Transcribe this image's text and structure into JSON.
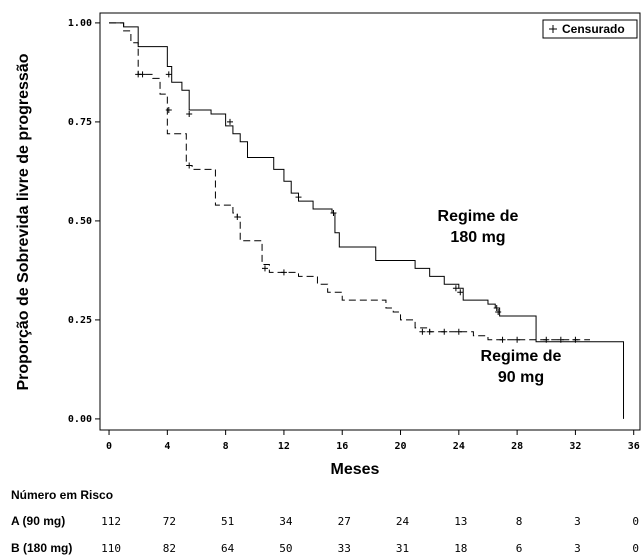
{
  "chart_data": {
    "type": "step",
    "y_label": "Proporção de Sobrevida livre de progressão",
    "x_label": "Meses",
    "xlim": [
      -0.62,
      36.5
    ],
    "ylim": [
      -0.028,
      1.025
    ],
    "xticks": [
      0,
      4,
      8,
      12,
      16,
      20,
      24,
      28,
      32,
      36
    ],
    "yticks": [
      {
        "value": 0,
        "label": "0.00"
      },
      {
        "value": 0.25,
        "label": "0.25"
      },
      {
        "value": 0.5,
        "label": "0.50"
      },
      {
        "value": 0.75,
        "label": "0.75"
      },
      {
        "value": 1,
        "label": "1.00"
      }
    ],
    "grid": false,
    "legend_label": "Censurado",
    "legend_position": "top-right",
    "annotations": [
      [
        "Regime de",
        "180 mg"
      ],
      [
        "Regime de",
        "90 mg"
      ]
    ],
    "series": [
      {
        "name": "B (180 mg)",
        "color": "#000000",
        "dashed": false,
        "x": [
          0,
          1,
          2,
          4,
          4.3,
          5,
          5.5,
          7,
          8,
          8.5,
          9,
          9.5,
          11.3,
          12,
          12.5,
          13,
          14,
          15.3,
          15.5,
          15.8,
          18.3,
          21,
          22,
          23,
          24,
          24.3,
          26,
          26.5,
          26.8,
          29.3,
          35.3,
          35.3
        ],
        "values": [
          1.0,
          0.99,
          0.94,
          0.89,
          0.85,
          0.83,
          0.78,
          0.77,
          0.74,
          0.72,
          0.7,
          0.66,
          0.63,
          0.6,
          0.57,
          0.55,
          0.53,
          0.52,
          0.47,
          0.434,
          0.4,
          0.38,
          0.36,
          0.34,
          0.33,
          0.3,
          0.29,
          0.28,
          0.26,
          0.195,
          0.195,
          0.0
        ],
        "censored_x": [
          4.1,
          5.5,
          8.3,
          13,
          15.4,
          23.8,
          24.1,
          26.6,
          26.7,
          32
        ],
        "censored_y": [
          0.87,
          0.77,
          0.75,
          0.56,
          0.52,
          0.33,
          0.32,
          0.28,
          0.27,
          0.2
        ]
      },
      {
        "name": "A (90 mg)",
        "color": "#000000",
        "dashed": true,
        "x": [
          0,
          1,
          1.5,
          2,
          3,
          3.5,
          4,
          5.3,
          5.7,
          7.3,
          8.5,
          8.8,
          9,
          10.5,
          11,
          13,
          14.3,
          15,
          16,
          19,
          19.5,
          20,
          21,
          22,
          25,
          26,
          33
        ],
        "values": [
          1.0,
          0.98,
          0.95,
          0.87,
          0.86,
          0.82,
          0.72,
          0.64,
          0.63,
          0.54,
          0.52,
          0.51,
          0.45,
          0.39,
          0.37,
          0.36,
          0.34,
          0.32,
          0.3,
          0.28,
          0.27,
          0.25,
          0.23,
          0.22,
          0.21,
          0.2,
          0.2
        ],
        "censored_x": [
          2,
          2.3,
          4.1,
          5.5,
          8.8,
          10.7,
          12,
          21.5,
          22,
          23,
          24,
          27,
          28,
          30,
          31
        ],
        "censored_y": [
          0.87,
          0.87,
          0.78,
          0.64,
          0.51,
          0.38,
          0.37,
          0.22,
          0.22,
          0.22,
          0.22,
          0.2,
          0.2,
          0.2,
          0.2
        ]
      }
    ]
  },
  "risk_table": {
    "title": "Número em Risco",
    "rows": [
      {
        "label": "A (90 mg)",
        "values": [
          112,
          72,
          51,
          34,
          27,
          24,
          13,
          8,
          3,
          0
        ]
      },
      {
        "label": "B (180 mg)",
        "values": [
          110,
          82,
          64,
          50,
          33,
          31,
          18,
          6,
          3,
          0
        ]
      }
    ]
  }
}
